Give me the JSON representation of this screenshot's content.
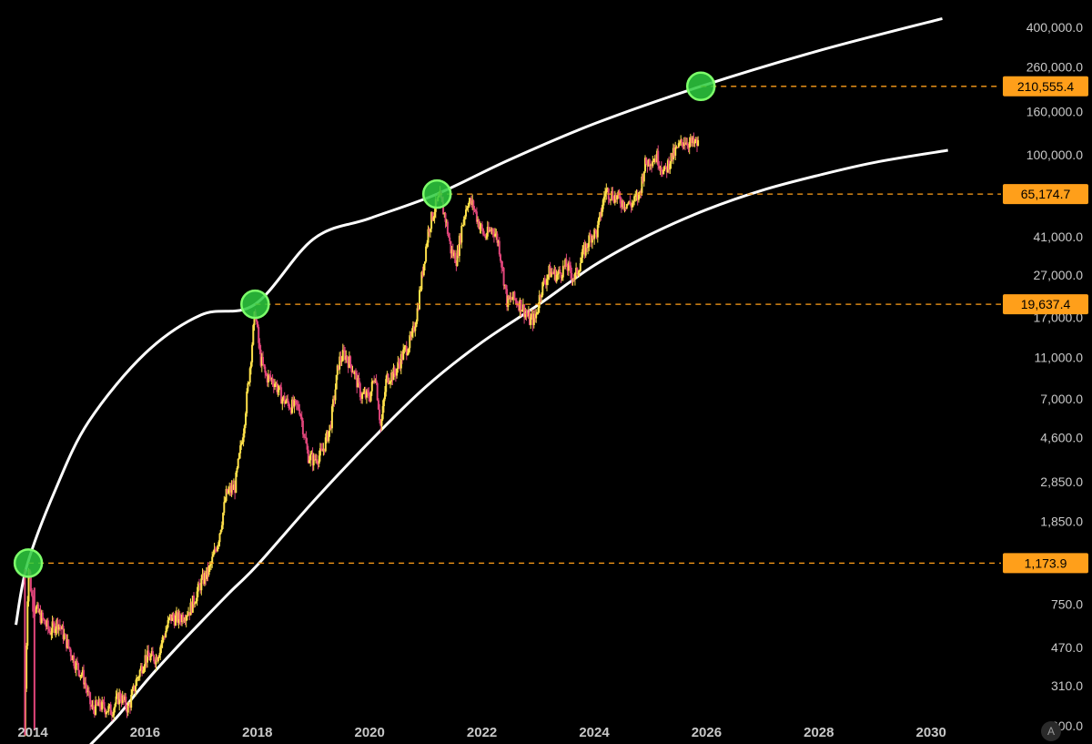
{
  "chart_data": {
    "type": "candlestick",
    "scale": "log",
    "x_ticks": [
      "2014",
      "2016",
      "2018",
      "2020",
      "2022",
      "2024",
      "2026",
      "2028",
      "2030"
    ],
    "y_ticks": [
      {
        "value": 400000,
        "label": "400,000.0"
      },
      {
        "value": 260000,
        "label": "260,000.0"
      },
      {
        "value": 160000,
        "label": "160,000.0"
      },
      {
        "value": 100000,
        "label": "100,000.0"
      },
      {
        "value": 41000,
        "label": "41,000.0"
      },
      {
        "value": 27000,
        "label": "27,000.0"
      },
      {
        "value": 17000,
        "label": "17,000.0"
      },
      {
        "value": 11000,
        "label": "11,000.0"
      },
      {
        "value": 7000,
        "label": "7,000.0"
      },
      {
        "value": 4600,
        "label": "4,600.0"
      },
      {
        "value": 2850,
        "label": "2,850.0"
      },
      {
        "value": 1850,
        "label": "1,850.0"
      },
      {
        "value": 750,
        "label": "750.0"
      },
      {
        "value": 470,
        "label": "470.0"
      },
      {
        "value": 310,
        "label": "310.0"
      },
      {
        "value": 200,
        "label": "200.0"
      }
    ],
    "ylim": [
      170,
      500000
    ],
    "xlim": [
      2013.7,
      2030.8
    ],
    "price_labels": [
      {
        "value": 210555.4,
        "label": "210,555.4",
        "x": 2025.9
      },
      {
        "value": 65174.7,
        "label": "65,174.7",
        "x": 2021.2
      },
      {
        "value": 19637.4,
        "label": "19,637.4",
        "x": 2017.96
      },
      {
        "value": 1173.9,
        "label": "1,173.9",
        "x": 2013.92
      }
    ],
    "price_series": [
      [
        2013.85,
        180
      ],
      [
        2013.92,
        1150
      ],
      [
        2014.0,
        750
      ],
      [
        2014.15,
        650
      ],
      [
        2014.3,
        560
      ],
      [
        2014.45,
        620
      ],
      [
        2014.6,
        500
      ],
      [
        2014.75,
        400
      ],
      [
        2014.9,
        340
      ],
      [
        2015.05,
        240
      ],
      [
        2015.2,
        250
      ],
      [
        2015.4,
        235
      ],
      [
        2015.55,
        280
      ],
      [
        2015.7,
        240
      ],
      [
        2015.85,
        330
      ],
      [
        2016.0,
        420
      ],
      [
        2016.2,
        420
      ],
      [
        2016.45,
        650
      ],
      [
        2016.6,
        640
      ],
      [
        2016.8,
        710
      ],
      [
        2017.0,
        950
      ],
      [
        2017.15,
        1100
      ],
      [
        2017.3,
        1500
      ],
      [
        2017.45,
        2500
      ],
      [
        2017.6,
        2700
      ],
      [
        2017.75,
        5000
      ],
      [
        2017.87,
        10000
      ],
      [
        2017.96,
        18500
      ],
      [
        2018.05,
        11000
      ],
      [
        2018.15,
        9000
      ],
      [
        2018.3,
        8500
      ],
      [
        2018.45,
        7000
      ],
      [
        2018.6,
        6500
      ],
      [
        2018.75,
        6400
      ],
      [
        2018.9,
        3800
      ],
      [
        2019.0,
        3600
      ],
      [
        2019.15,
        3900
      ],
      [
        2019.3,
        5200
      ],
      [
        2019.45,
        10500
      ],
      [
        2019.55,
        11500
      ],
      [
        2019.7,
        9800
      ],
      [
        2019.85,
        7300
      ],
      [
        2020.0,
        7200
      ],
      [
        2020.1,
        9300
      ],
      [
        2020.2,
        5100
      ],
      [
        2020.3,
        8800
      ],
      [
        2020.45,
        9300
      ],
      [
        2020.6,
        11500
      ],
      [
        2020.75,
        13500
      ],
      [
        2020.85,
        18500
      ],
      [
        2020.95,
        29000
      ],
      [
        2021.05,
        45000
      ],
      [
        2021.15,
        55000
      ],
      [
        2021.25,
        63000
      ],
      [
        2021.35,
        50000
      ],
      [
        2021.45,
        35000
      ],
      [
        2021.55,
        32000
      ],
      [
        2021.65,
        47000
      ],
      [
        2021.75,
        61000
      ],
      [
        2021.85,
        57000
      ],
      [
        2021.95,
        47000
      ],
      [
        2022.05,
        41000
      ],
      [
        2022.2,
        45000
      ],
      [
        2022.3,
        38000
      ],
      [
        2022.45,
        20000
      ],
      [
        2022.55,
        21000
      ],
      [
        2022.7,
        19500
      ],
      [
        2022.85,
        16500
      ],
      [
        2022.95,
        16800
      ],
      [
        2023.05,
        23000
      ],
      [
        2023.2,
        28000
      ],
      [
        2023.35,
        27000
      ],
      [
        2023.5,
        30000
      ],
      [
        2023.65,
        26000
      ],
      [
        2023.8,
        34000
      ],
      [
        2023.95,
        42000
      ],
      [
        2024.05,
        43000
      ],
      [
        2024.2,
        68000
      ],
      [
        2024.35,
        64000
      ],
      [
        2024.5,
        60000
      ],
      [
        2024.65,
        58000
      ],
      [
        2024.8,
        64000
      ],
      [
        2024.9,
        90000
      ],
      [
        2025.0,
        95000
      ],
      [
        2025.12,
        98000
      ],
      [
        2025.25,
        82000
      ],
      [
        2025.35,
        95000
      ],
      [
        2025.5,
        108000
      ],
      [
        2025.6,
        118000
      ],
      [
        2025.72,
        113000
      ],
      [
        2025.85,
        112000
      ]
    ],
    "upper_band": [
      [
        2013.7,
        600
      ],
      [
        2013.9,
        1150
      ],
      [
        2014.4,
        2600
      ],
      [
        2015.0,
        5500
      ],
      [
        2016.0,
        11500
      ],
      [
        2017.0,
        17500
      ],
      [
        2017.96,
        19637
      ],
      [
        2019.0,
        40000
      ],
      [
        2020.0,
        50000
      ],
      [
        2021.2,
        65175
      ],
      [
        2022.5,
        95000
      ],
      [
        2024.0,
        140000
      ],
      [
        2025.9,
        210555
      ],
      [
        2028.0,
        310000
      ],
      [
        2030.2,
        440000
      ]
    ],
    "lower_band": [
      [
        2015.0,
        160
      ],
      [
        2015.5,
        220
      ],
      [
        2016.0,
        320
      ],
      [
        2016.5,
        450
      ],
      [
        2017.0,
        620
      ],
      [
        2017.5,
        850
      ],
      [
        2018.0,
        1150
      ],
      [
        2019.0,
        2300
      ],
      [
        2020.0,
        4400
      ],
      [
        2021.0,
        8000
      ],
      [
        2022.0,
        13000
      ],
      [
        2023.0,
        19500
      ],
      [
        2024.0,
        30000
      ],
      [
        2025.0,
        42000
      ],
      [
        2026.0,
        55000
      ],
      [
        2027.0,
        68000
      ],
      [
        2028.0,
        80000
      ],
      [
        2029.0,
        92000
      ],
      [
        2030.3,
        105000
      ]
    ],
    "colors": {
      "background": "#000000",
      "band": "#ffffff",
      "price_up": "#ffe04a",
      "price_down": "#e0457a",
      "marker_fill": "#2ecc40",
      "marker_stroke": "#7dff6a",
      "label_bg": "#ff9f1a",
      "dashed": "#ff9f1a",
      "tick_text": "#c8c8c8"
    }
  },
  "ui": {
    "auto_scale_label": "A"
  }
}
